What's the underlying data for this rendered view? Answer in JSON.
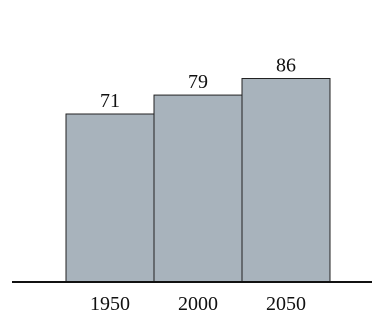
{
  "chart_data": {
    "type": "bar",
    "categories": [
      "1950",
      "2000",
      "2050"
    ],
    "values": [
      71,
      79,
      86
    ],
    "value_labels": [
      "71",
      "79",
      "86"
    ],
    "title": "",
    "xlabel": "",
    "ylabel": "",
    "ylim": [
      0,
      86
    ],
    "grid": false,
    "legend": "none",
    "bar_color": "#a8b3bc",
    "bar_edge_color": "#222222",
    "axis_color": "#111111"
  }
}
